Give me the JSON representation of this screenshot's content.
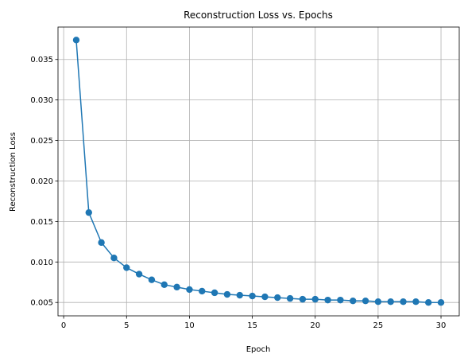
{
  "chart_data": {
    "type": "line",
    "title": "Reconstruction Loss vs. Epochs",
    "xlabel": "Epoch",
    "ylabel": "Reconstruction Loss",
    "xlim": [
      -0.45,
      31.45
    ],
    "ylim": [
      0.00335,
      0.039
    ],
    "xticks": [
      0,
      5,
      10,
      15,
      20,
      25,
      30
    ],
    "xtick_labels": [
      "0",
      "5",
      "10",
      "15",
      "20",
      "25",
      "30"
    ],
    "yticks": [
      0.005,
      0.01,
      0.015,
      0.02,
      0.025,
      0.03,
      0.035
    ],
    "ytick_labels": [
      "0.005",
      "0.010",
      "0.015",
      "0.020",
      "0.025",
      "0.030",
      "0.035"
    ],
    "grid": true,
    "legend": false,
    "color": "#1f77b4",
    "marker": "circle",
    "series": [
      {
        "x": [
          1,
          2,
          3,
          4,
          5,
          6,
          7,
          8,
          9,
          10,
          11,
          12,
          13,
          14,
          15,
          16,
          17,
          18,
          19,
          20,
          21,
          22,
          23,
          24,
          25,
          26,
          27,
          28,
          29,
          30
        ],
        "y": [
          0.0374,
          0.0161,
          0.0124,
          0.0105,
          0.0093,
          0.0085,
          0.0078,
          0.0072,
          0.0069,
          0.0066,
          0.0064,
          0.0062,
          0.006,
          0.0059,
          0.0058,
          0.0057,
          0.0056,
          0.0055,
          0.0054,
          0.0054,
          0.0053,
          0.0053,
          0.0052,
          0.0052,
          0.0051,
          0.0051,
          0.0051,
          0.0051,
          0.005,
          0.005
        ]
      }
    ]
  }
}
